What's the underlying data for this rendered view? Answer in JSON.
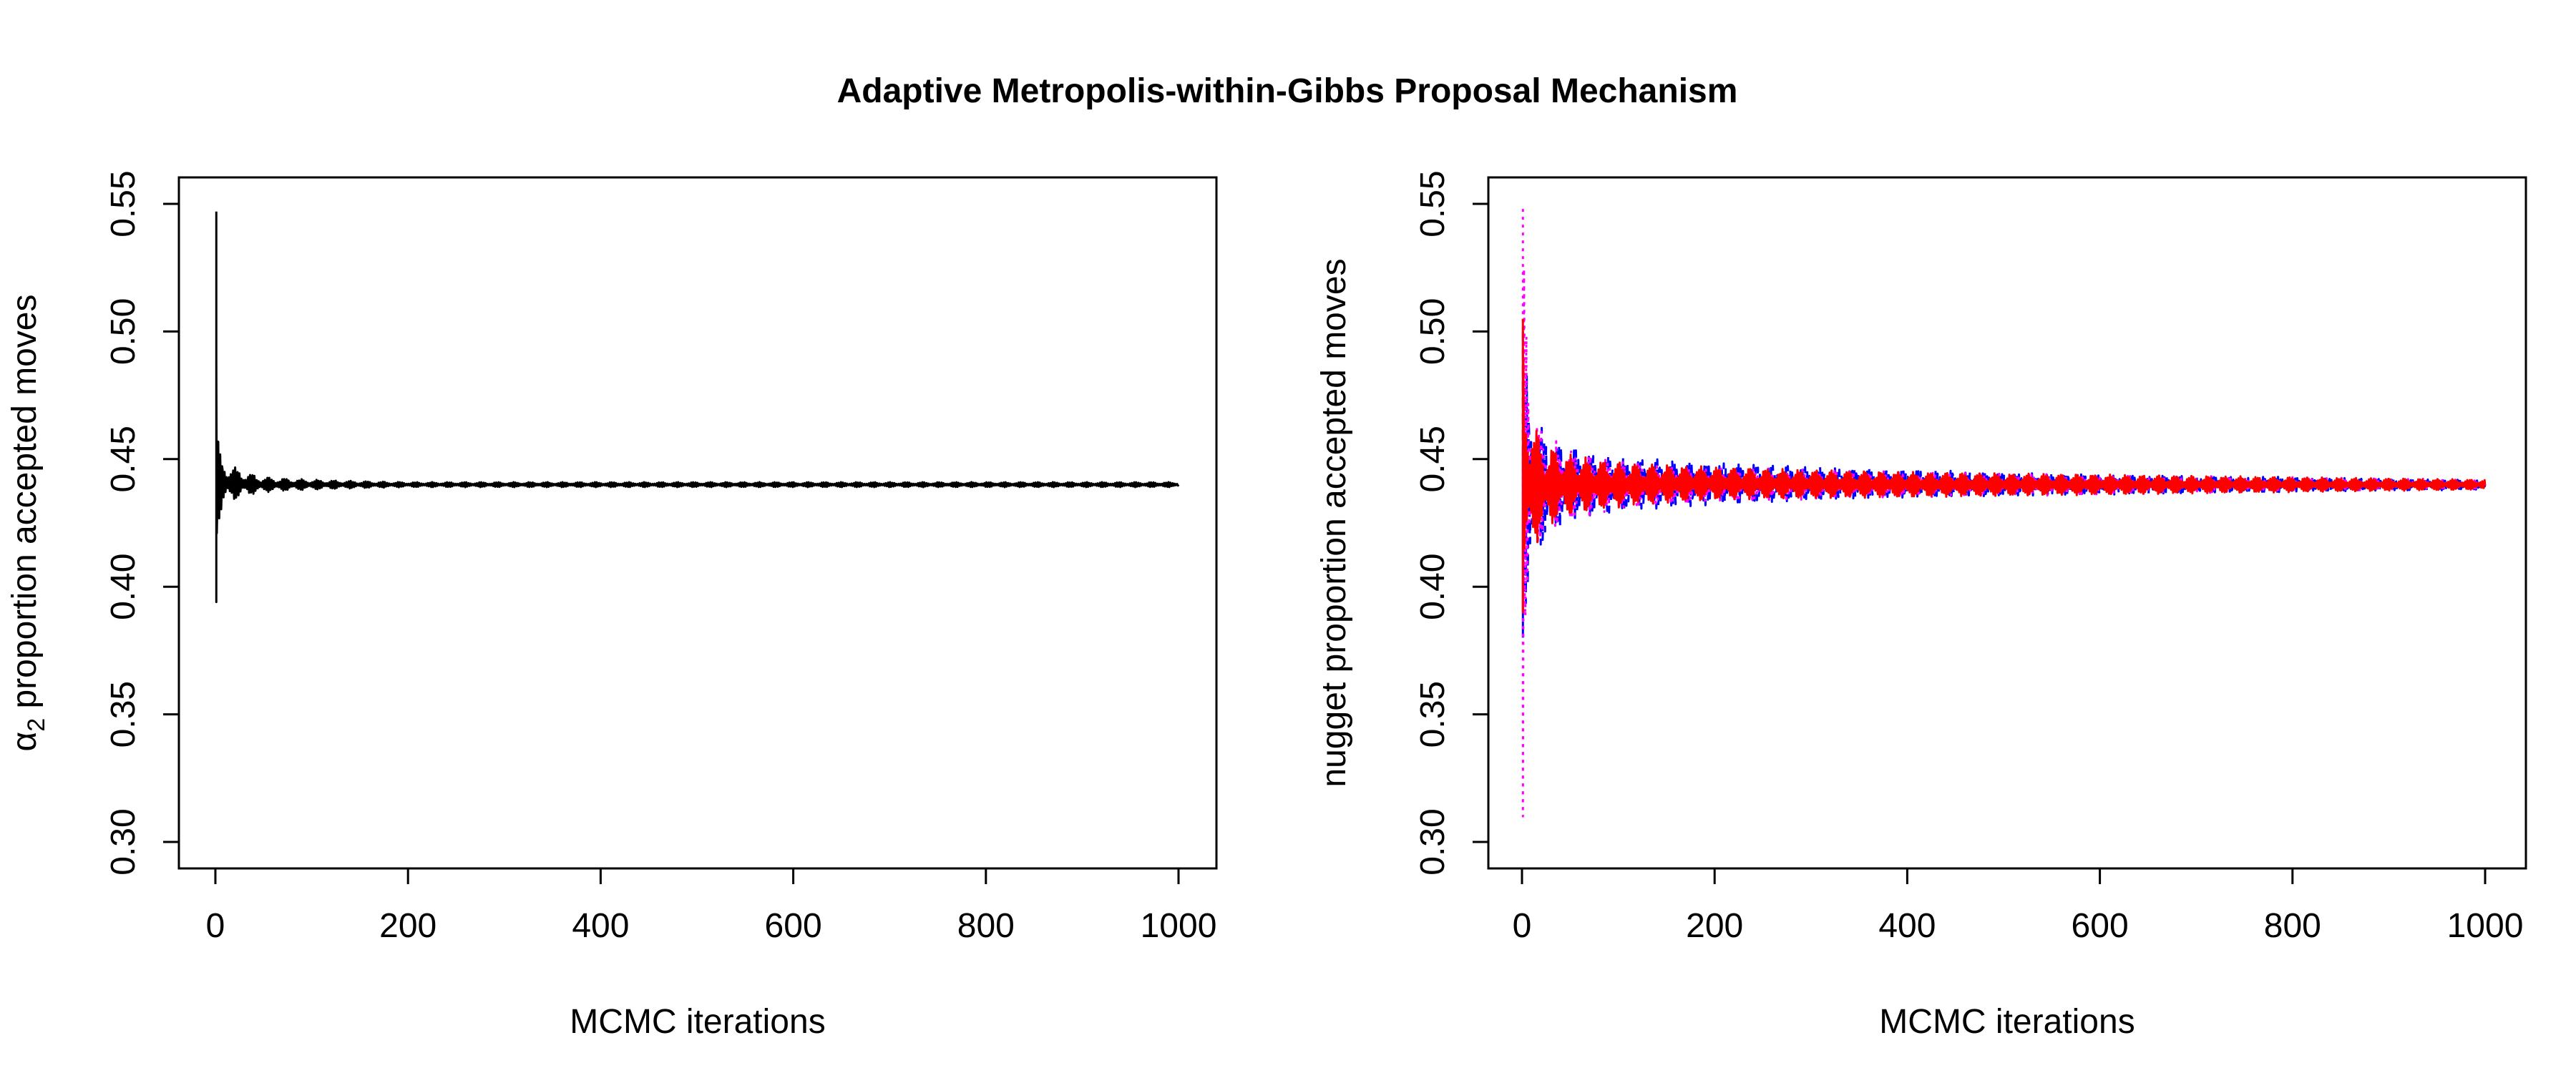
{
  "figure": {
    "title": "Adaptive Metropolis-within-Gibbs Proposal Mechanism"
  },
  "chart_data": [
    {
      "type": "line",
      "xlabel": "MCMC iterations",
      "ylabel_symbol": "α",
      "ylabel_subscript": "2",
      "ylabel_rest": " proportion accepted moves",
      "xlim": [
        0,
        1000
      ],
      "ylim": [
        0.3,
        0.55
      ],
      "xticks": [
        "0",
        "200",
        "400",
        "600",
        "800",
        "1000"
      ],
      "yticks": [
        "0.30",
        "0.35",
        "0.40",
        "0.45",
        "0.50",
        "0.55"
      ],
      "grid": false,
      "series": [
        {
          "color": "#000000",
          "line_style": "solid",
          "target": 0.44,
          "envelope": [
            [
              1,
              0.547,
              0.394
            ],
            [
              2,
              0.468,
              0.42
            ],
            [
              5,
              0.452,
              0.428
            ],
            [
              10,
              0.449,
              0.432
            ],
            [
              20,
              0.447,
              0.434
            ],
            [
              50,
              0.443,
              0.437
            ],
            [
              100,
              0.442,
              0.438
            ],
            [
              200,
              0.441,
              0.439
            ],
            [
              1000,
              0.441,
              0.439
            ]
          ]
        }
      ]
    },
    {
      "type": "line",
      "xlabel": "MCMC iterations",
      "ylabel": "nugget proportion accepted moves",
      "xlim": [
        0,
        1000
      ],
      "ylim": [
        0.3,
        0.55
      ],
      "xticks": [
        "0",
        "200",
        "400",
        "600",
        "800",
        "1000"
      ],
      "yticks": [
        "0.30",
        "0.35",
        "0.40",
        "0.45",
        "0.50",
        "0.55"
      ],
      "grid": false,
      "series": [
        {
          "color": "#0000ff",
          "line_style": "dashed",
          "target": 0.44,
          "envelope": [
            [
              1,
              0.5,
              0.38
            ],
            [
              5,
              0.483,
              0.393
            ],
            [
              20,
              0.463,
              0.415
            ],
            [
              50,
              0.455,
              0.425
            ],
            [
              100,
              0.451,
              0.429
            ],
            [
              200,
              0.449,
              0.432
            ],
            [
              400,
              0.446,
              0.435
            ],
            [
              600,
              0.444,
              0.436
            ],
            [
              800,
              0.443,
              0.437
            ],
            [
              1000,
              0.442,
              0.438
            ]
          ]
        },
        {
          "color": "#ff00ff",
          "line_style": "dotted",
          "target": 0.44,
          "envelope": [
            [
              1,
              0.548,
              0.31
            ],
            [
              3,
              0.53,
              0.365
            ],
            [
              10,
              0.48,
              0.4
            ],
            [
              20,
              0.462,
              0.418
            ],
            [
              50,
              0.454,
              0.426
            ],
            [
              100,
              0.45,
              0.43
            ],
            [
              200,
              0.447,
              0.433
            ],
            [
              400,
              0.445,
              0.435
            ],
            [
              600,
              0.444,
              0.436
            ],
            [
              1000,
              0.442,
              0.438
            ]
          ]
        },
        {
          "color": "#ff0000",
          "line_style": "solid",
          "target": 0.44,
          "envelope": [
            [
              1,
              0.505,
              0.39
            ],
            [
              5,
              0.478,
              0.404
            ],
            [
              20,
              0.458,
              0.42
            ],
            [
              50,
              0.452,
              0.428
            ],
            [
              100,
              0.449,
              0.431
            ],
            [
              200,
              0.447,
              0.434
            ],
            [
              400,
              0.445,
              0.435
            ],
            [
              600,
              0.444,
              0.436
            ],
            [
              800,
              0.443,
              0.437
            ],
            [
              1000,
              0.442,
              0.438
            ]
          ]
        }
      ]
    }
  ]
}
